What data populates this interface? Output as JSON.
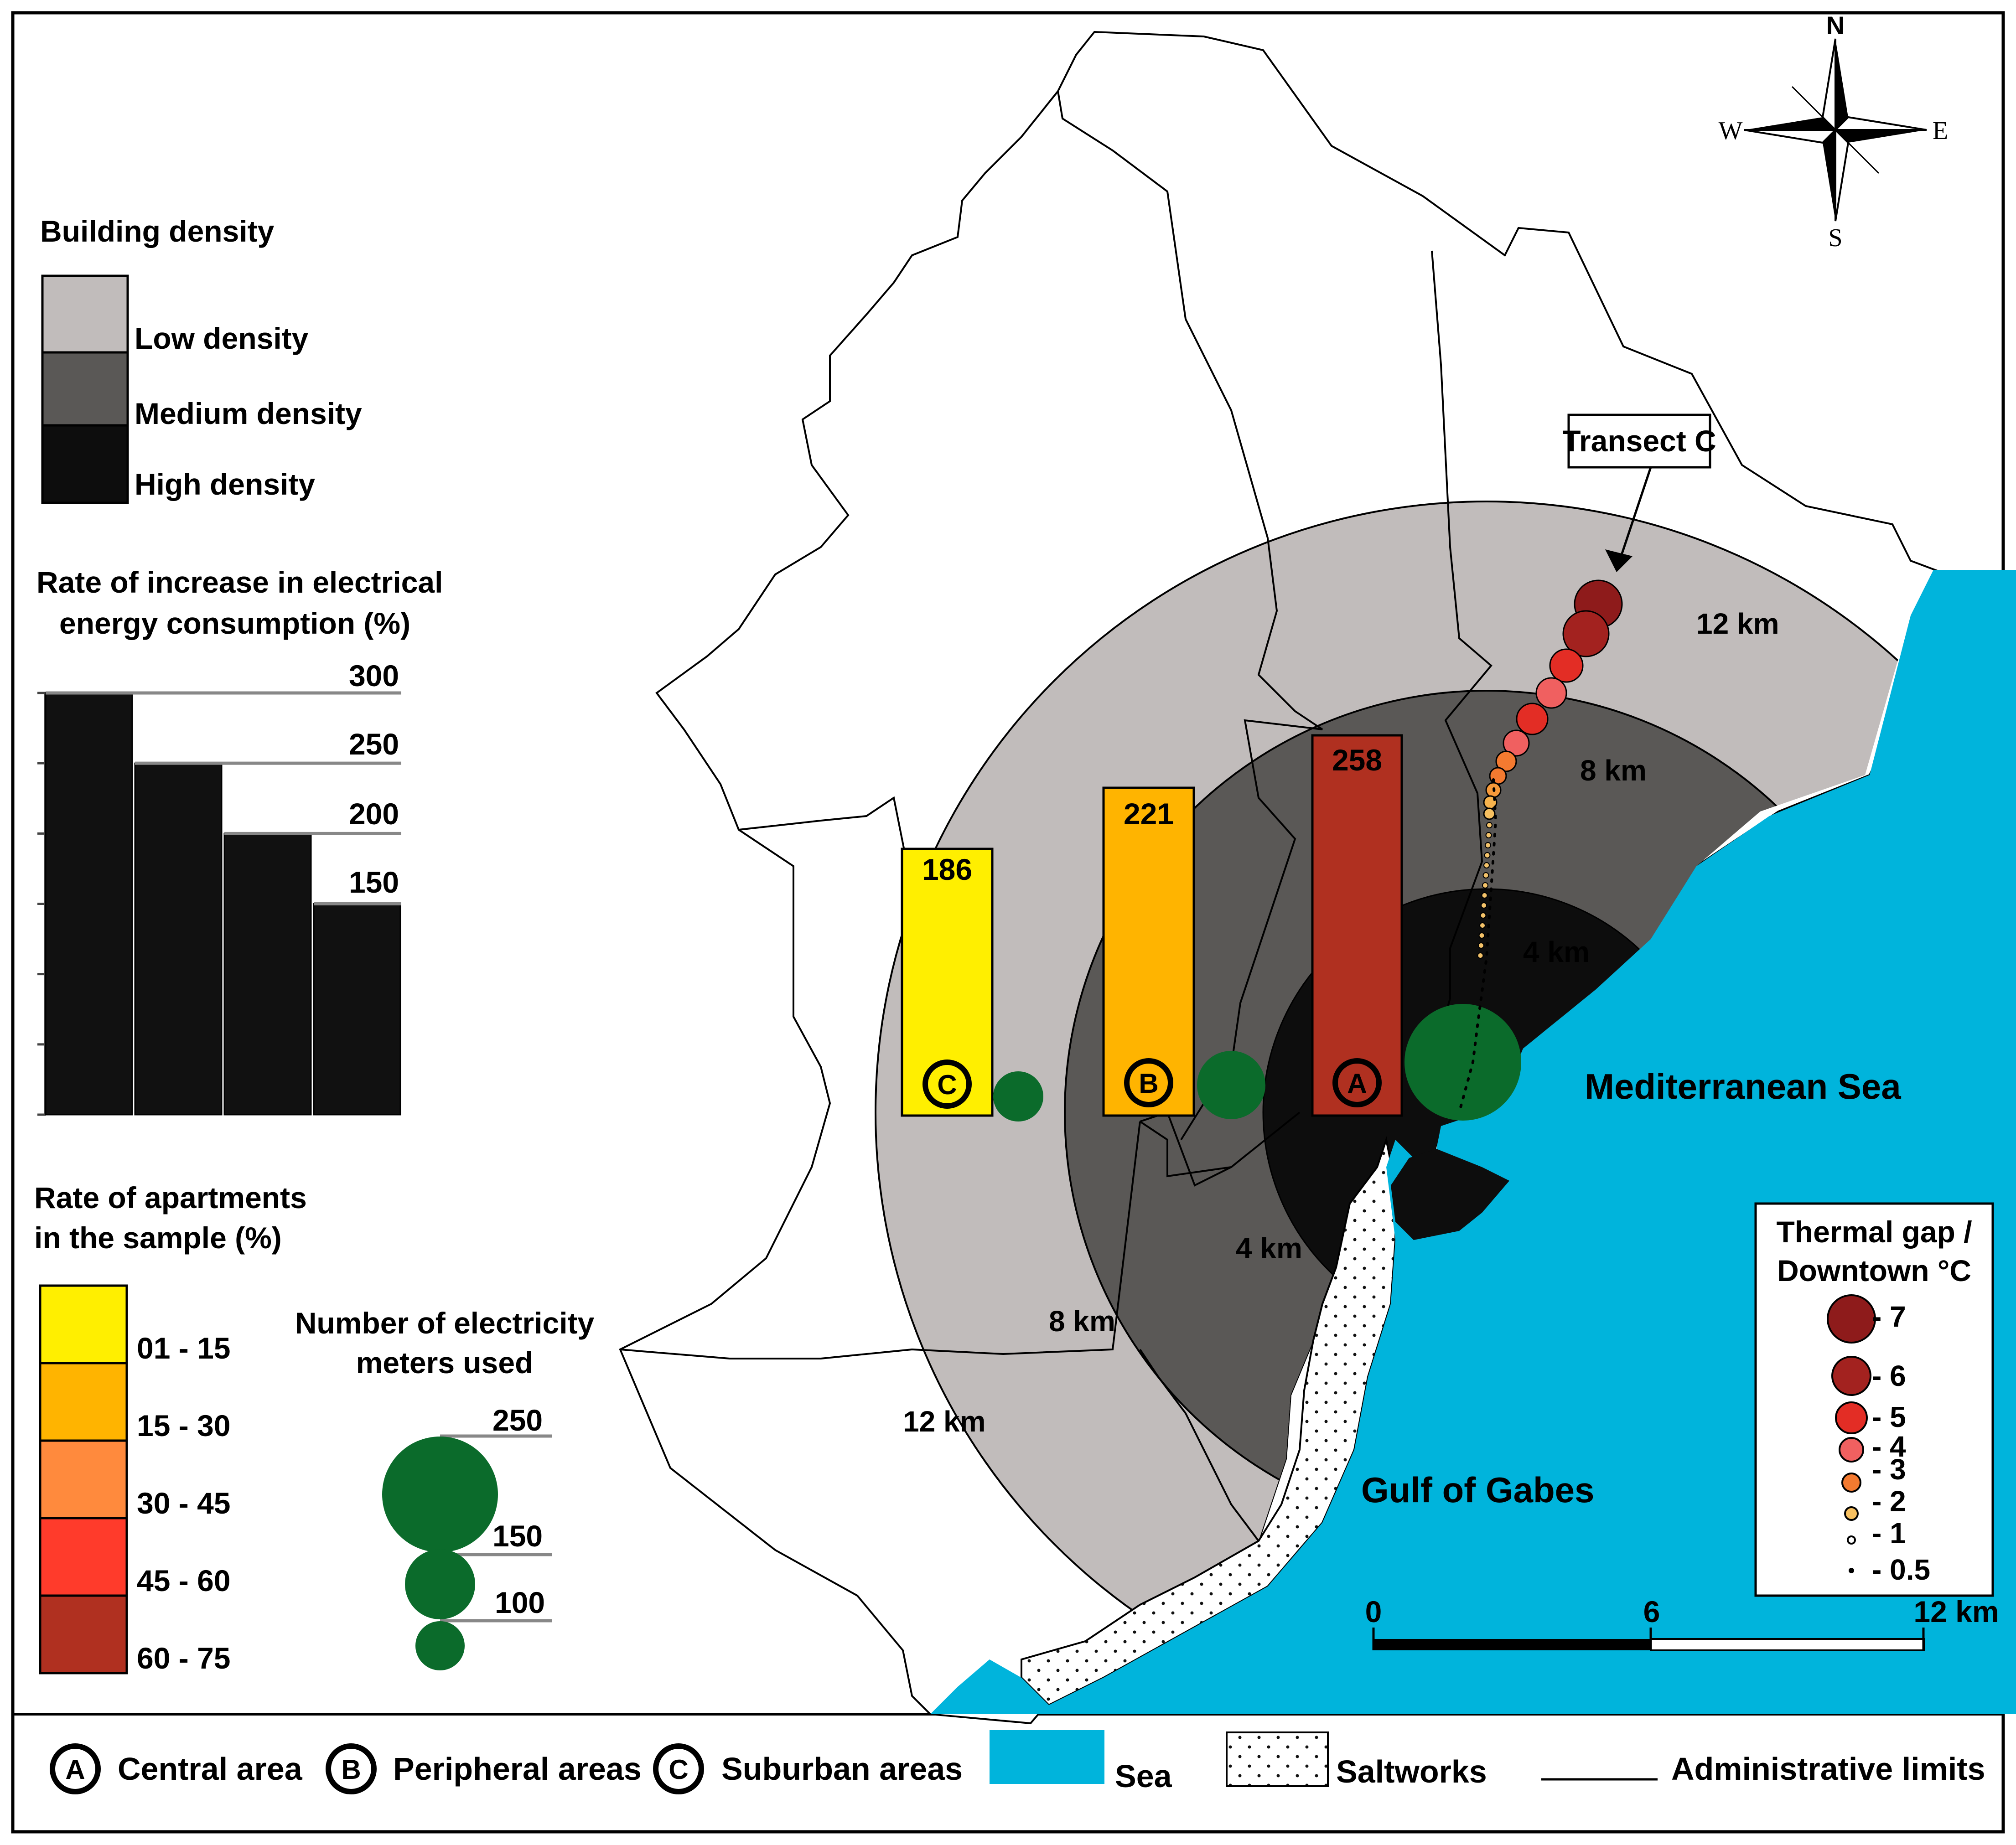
{
  "compass": {
    "north": "N",
    "south": "S",
    "east": "E",
    "west": "W"
  },
  "colors": {
    "sea": "#00b4dc",
    "low_density": "#c1bcbb",
    "medium_density": "#5a5856",
    "high_density": "#0d0d0d",
    "green_meter": "#0b6b2b",
    "class_01_15": "#ffef00",
    "class_15_30": "#ffb400",
    "class_30_45": "#ff8a3d",
    "class_45_60": "#ff3b2b",
    "class_60_75": "#b03020"
  },
  "legend_density": {
    "title": "Building density",
    "items": [
      {
        "label": "Low density",
        "color": "#c1bcbb"
      },
      {
        "label": "Medium density",
        "color": "#5a5856"
      },
      {
        "label": "High density",
        "color": "#0d0d0d"
      }
    ]
  },
  "legend_increase": {
    "title_line1": "Rate of increase in electrical",
    "title_line2": "energy consumption (%)",
    "bars": [
      300,
      250,
      200,
      150
    ],
    "axis_max": 300,
    "ticks": [
      "300",
      "250",
      "200",
      "150"
    ]
  },
  "legend_apartments": {
    "title_line1": "Rate of apartments",
    "title_line2": "in the sample (%)",
    "classes": [
      {
        "label": "01 - 15",
        "color": "#ffef00"
      },
      {
        "label": "15 - 30",
        "color": "#ffb400"
      },
      {
        "label": "30 - 45",
        "color": "#ff8a3d"
      },
      {
        "label": "45 - 60",
        "color": "#ff3b2b"
      },
      {
        "label": "60 - 75",
        "color": "#b03020"
      }
    ]
  },
  "legend_meters": {
    "title_line1": "Number of electricity",
    "title_line2": "meters used",
    "values": [
      "250",
      "150",
      "100"
    ]
  },
  "legend_thermal": {
    "title_line1": "Thermal gap /",
    "title_line2": "Downtown °C",
    "items": [
      "- 7",
      "- 6",
      "- 5",
      "- 4",
      "- 3",
      "- 2",
      "- 1",
      "- 0.5"
    ]
  },
  "zones": [
    {
      "code": "A",
      "value": "258",
      "color": "#b03020"
    },
    {
      "code": "B",
      "value": "221",
      "color": "#ffb400"
    },
    {
      "code": "C",
      "value": "186",
      "color": "#ffef00"
    }
  ],
  "map_labels": {
    "transect": "Transect C",
    "ring_12_ne": "12 km",
    "ring_8_ne": "8 km",
    "ring_4_ne": "4 km",
    "ring_4_sw": "4 km",
    "ring_8_sw": "8 km",
    "ring_12_sw": "12 km",
    "sea": "Mediterranean Sea",
    "gulf": "Gulf of Gabes"
  },
  "scale_bar": {
    "start": "0",
    "mid": "6",
    "end": "12 km"
  },
  "bottom_legend": {
    "central": "Central area",
    "peripheral": "Peripheral areas",
    "suburban": "Suburban areas",
    "sea": "Sea",
    "saltworks": "Saltworks",
    "admin": "Administrative limits",
    "code_a": "A",
    "code_b": "B",
    "code_c": "C"
  }
}
